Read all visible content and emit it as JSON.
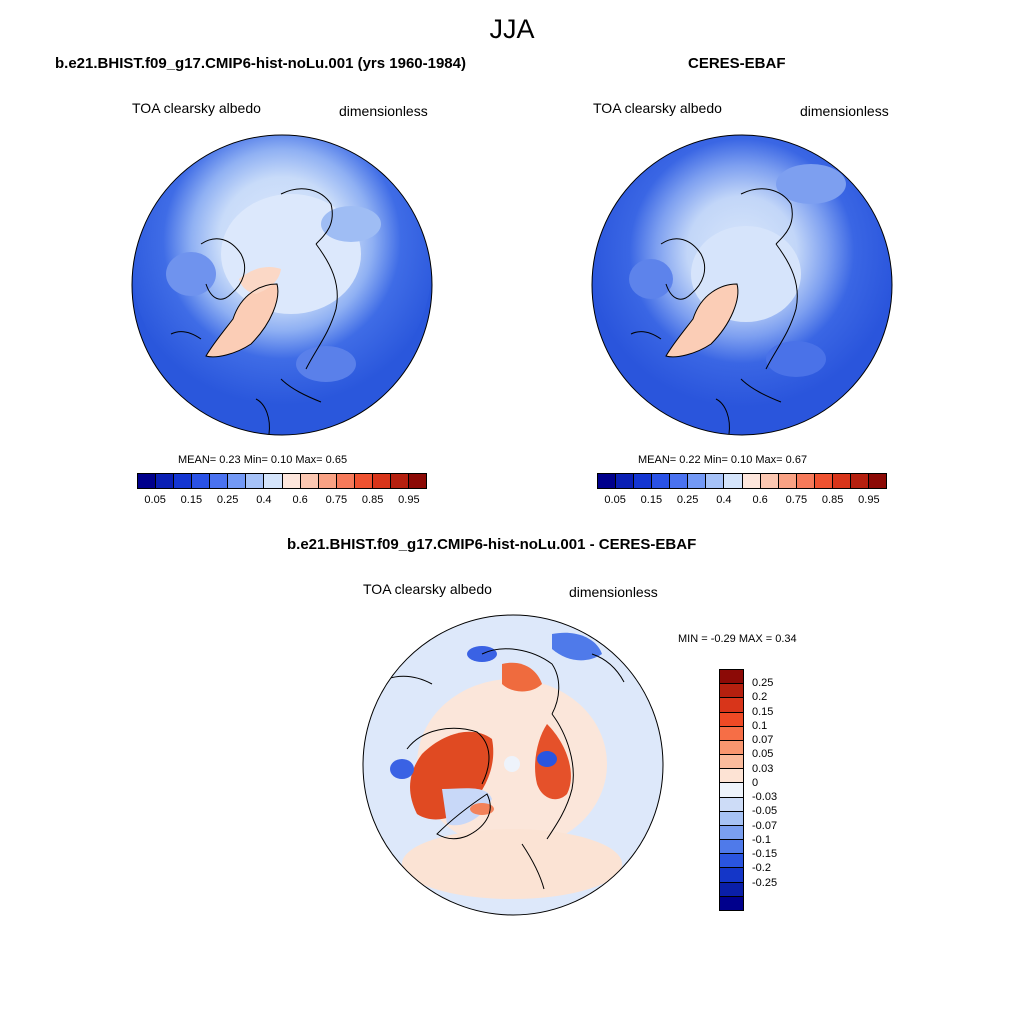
{
  "title": "JJA",
  "panels": {
    "model": {
      "title": "b.e21.BHIST.f09_g17.CMIP6-hist-noLu.001 (yrs 1960-1984)",
      "left_label": "TOA clearsky albedo",
      "right_label": "dimensionless",
      "stats": "MEAN=   0.23  Min=   0.10  Max=   0.65"
    },
    "obs": {
      "title": "CERES-EBAF",
      "left_label": "TOA clearsky albedo",
      "right_label": "dimensionless",
      "stats": "MEAN=   0.22  Min=   0.10  Max=   0.67"
    },
    "diff": {
      "title": "b.e21.BHIST.f09_g17.CMIP6-hist-noLu.001 - CERES-EBAF",
      "left_label": "TOA clearsky albedo",
      "right_label": "dimensionless",
      "stats": "MIN =  -0.29 MAX =   0.34"
    }
  },
  "abs_colorbar": {
    "colors": [
      "#00008c",
      "#0a1fb4",
      "#1436d2",
      "#2a52e6",
      "#4a72f0",
      "#7399f5",
      "#a6c2f8",
      "#d4e4fb",
      "#fde6dc",
      "#fbc7b1",
      "#f9a284",
      "#f67a5a",
      "#ef5230",
      "#d8351a",
      "#b5200f",
      "#8c0a06"
    ],
    "ticks": [
      "0.05",
      "0.15",
      "0.25",
      "0.4",
      "0.6",
      "0.75",
      "0.85",
      "0.95"
    ]
  },
  "diff_colorbar": {
    "colors": [
      "#8c0a06",
      "#b5200f",
      "#d8351a",
      "#ef4a25",
      "#f66e46",
      "#f9966f",
      "#fbbb9c",
      "#fde3d4",
      "#eef3fb",
      "#cddcf7",
      "#a6c2f4",
      "#7a9ff0",
      "#4f7aea",
      "#2a55e0",
      "#1436c8",
      "#0a1fa8",
      "#00008c"
    ],
    "ticks": [
      "0.25",
      "0.2",
      "0.15",
      "0.1",
      "0.07",
      "0.05",
      "0.03",
      "0",
      "-0.03",
      "-0.05",
      "-0.07",
      "-0.1",
      "-0.15",
      "-0.2",
      "-0.25"
    ]
  }
}
